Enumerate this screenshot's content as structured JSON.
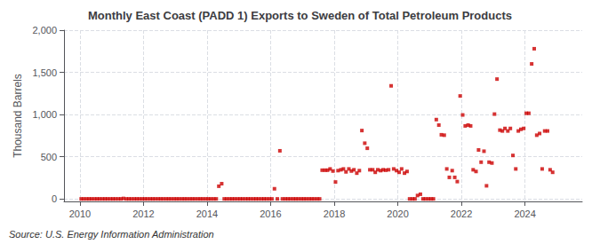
{
  "chart_data": {
    "type": "scatter",
    "title": "Monthly East Coast (PADD 1) Exports to Sweden of Total Petroleum Products",
    "ylabel": "Thousand Barrels",
    "annotation": "Source: U.S. Energy Information Administration",
    "color": "#cc0000",
    "marker": "square",
    "grid": true,
    "xlim": [
      2009.5,
      2025.8
    ],
    "xticks": [
      2010,
      2012,
      2014,
      2016,
      2018,
      2020,
      2022,
      2024
    ],
    "ylim": [
      -30,
      2000
    ],
    "yticks": [
      0,
      500,
      {
        "value": 1000,
        "label": "1,000"
      },
      {
        "value": 1500,
        "label": "1,500"
      },
      {
        "value": 2000,
        "label": "2,000"
      }
    ],
    "x": [
      2010.04,
      2010.12,
      2010.21,
      2010.29,
      2010.37,
      2010.46,
      2010.54,
      2010.62,
      2010.71,
      2010.79,
      2010.87,
      2010.96,
      2011.04,
      2011.12,
      2011.21,
      2011.29,
      2011.37,
      2011.46,
      2011.54,
      2011.62,
      2011.71,
      2011.79,
      2011.87,
      2011.96,
      2012.04,
      2012.12,
      2012.21,
      2012.29,
      2012.37,
      2012.46,
      2012.54,
      2012.62,
      2012.71,
      2012.79,
      2012.87,
      2012.96,
      2013.04,
      2013.12,
      2013.21,
      2013.29,
      2013.37,
      2013.46,
      2013.54,
      2013.62,
      2013.71,
      2013.79,
      2013.87,
      2013.96,
      2014.04,
      2014.12,
      2014.21,
      2014.29,
      2014.37,
      2014.46,
      2014.54,
      2014.62,
      2014.71,
      2014.79,
      2014.87,
      2014.96,
      2015.04,
      2015.12,
      2015.21,
      2015.29,
      2015.37,
      2015.46,
      2015.54,
      2015.62,
      2015.71,
      2015.79,
      2015.87,
      2015.96,
      2016.04,
      2016.12,
      2016.21,
      2016.29,
      2016.37,
      2016.46,
      2016.54,
      2016.62,
      2016.71,
      2016.79,
      2016.87,
      2016.96,
      2017.04,
      2017.12,
      2017.21,
      2017.29,
      2017.37,
      2017.46,
      2017.54,
      2017.62,
      2017.71,
      2017.79,
      2017.87,
      2017.96,
      2018.04,
      2018.12,
      2018.21,
      2018.29,
      2018.37,
      2018.46,
      2018.54,
      2018.62,
      2018.71,
      2018.79,
      2018.87,
      2018.96,
      2019.04,
      2019.12,
      2019.21,
      2019.29,
      2019.37,
      2019.46,
      2019.54,
      2019.62,
      2019.71,
      2019.79,
      2019.87,
      2019.96,
      2020.04,
      2020.12,
      2020.21,
      2020.29,
      2020.37,
      2020.46,
      2020.54,
      2020.62,
      2020.71,
      2020.79,
      2020.87,
      2020.96,
      2021.04,
      2021.12,
      2021.21,
      2021.29,
      2021.37,
      2021.46,
      2021.54,
      2021.62,
      2021.71,
      2021.79,
      2021.87,
      2021.96,
      2022.04,
      2022.12,
      2022.21,
      2022.29,
      2022.37,
      2022.46,
      2022.54,
      2022.62,
      2022.71,
      2022.79,
      2022.87,
      2022.96,
      2023.04,
      2023.12,
      2023.21,
      2023.29,
      2023.37,
      2023.46,
      2023.54,
      2023.62,
      2023.71,
      2023.79,
      2023.87,
      2023.96,
      2024.04,
      2024.12,
      2024.21,
      2024.29,
      2024.37,
      2024.46,
      2024.54,
      2024.62,
      2024.71,
      2024.79,
      2024.87
    ],
    "values": [
      0,
      0,
      0,
      0,
      0,
      0,
      0,
      0,
      0,
      0,
      0,
      0,
      0,
      0,
      0,
      0,
      5,
      0,
      0,
      0,
      0,
      0,
      0,
      0,
      0,
      0,
      0,
      0,
      0,
      0,
      0,
      0,
      0,
      0,
      0,
      0,
      0,
      0,
      0,
      0,
      0,
      0,
      0,
      0,
      0,
      0,
      0,
      0,
      0,
      0,
      0,
      0,
      150,
      180,
      0,
      0,
      0,
      0,
      0,
      0,
      0,
      0,
      0,
      0,
      0,
      0,
      0,
      0,
      0,
      0,
      0,
      0,
      0,
      120,
      0,
      570,
      0,
      0,
      0,
      0,
      0,
      0,
      0,
      0,
      0,
      0,
      0,
      0,
      0,
      0,
      0,
      340,
      340,
      340,
      355,
      330,
      200,
      335,
      345,
      355,
      320,
      355,
      330,
      345,
      305,
      335,
      810,
      660,
      600,
      345,
      345,
      315,
      345,
      335,
      345,
      340,
      345,
      1340,
      355,
      335,
      315,
      355,
      305,
      325,
      0,
      0,
      0,
      40,
      55,
      0,
      0,
      0,
      0,
      0,
      940,
      875,
      760,
      755,
      355,
      255,
      335,
      255,
      205,
      1220,
      995,
      865,
      875,
      865,
      345,
      325,
      580,
      435,
      565,
      155,
      435,
      425,
      1005,
      1420,
      815,
      805,
      835,
      805,
      835,
      515,
      355,
      805,
      825,
      835,
      1015,
      1015,
      1600,
      1780,
      755,
      775,
      355,
      805,
      805,
      345,
      315
    ]
  }
}
